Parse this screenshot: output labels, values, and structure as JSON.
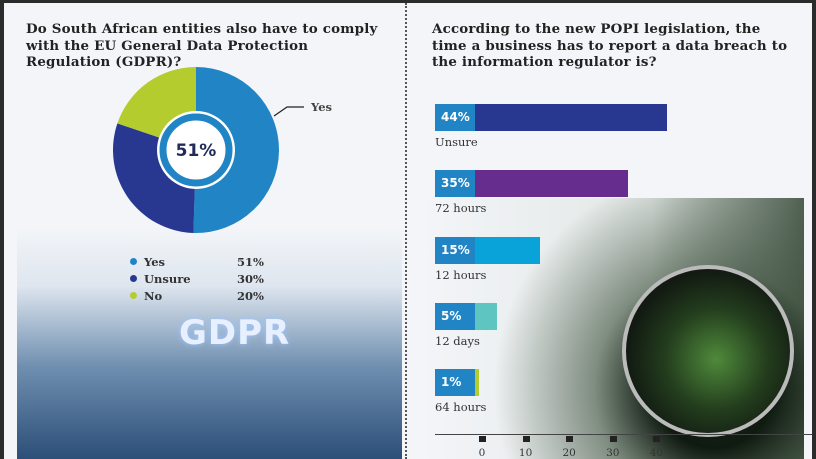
{
  "chart_data": [
    {
      "type": "pie",
      "title": "Do South African entities also have to comply with the EU General Data Protection Regulation (GDPR)?",
      "categories": [
        "Yes",
        "Unsure",
        "No"
      ],
      "values": [
        51,
        30,
        20
      ],
      "colors": [
        "#2185c5",
        "#283891",
        "#b5cc2e"
      ],
      "center_label": "51%",
      "callout_label": "Yes",
      "value_labels": [
        "51%",
        "30%",
        "20%"
      ],
      "legend": "bottom"
    },
    {
      "type": "bar",
      "orientation": "horizontal",
      "title": "According to the new POPI legislation, the time a business has to report a data breach to the information regulator is?",
      "categories": [
        "Unsure",
        "72 hours",
        "12 hours",
        "12 days",
        "64 hours"
      ],
      "values": [
        44,
        35,
        15,
        5,
        1
      ],
      "value_labels": [
        "44%",
        "35%",
        "15%",
        "5%",
        "1%"
      ],
      "colors": [
        "#283891",
        "#662d8f",
        "#0aa3d9",
        "#5fc5c0",
        "#b5cc2e"
      ],
      "label_box_color": "#2185c5",
      "xticks": [
        "0",
        "10",
        "20",
        "30",
        "40"
      ],
      "xlim": [
        0,
        45
      ]
    }
  ],
  "image_text": {
    "gdpr": "GDPR"
  }
}
